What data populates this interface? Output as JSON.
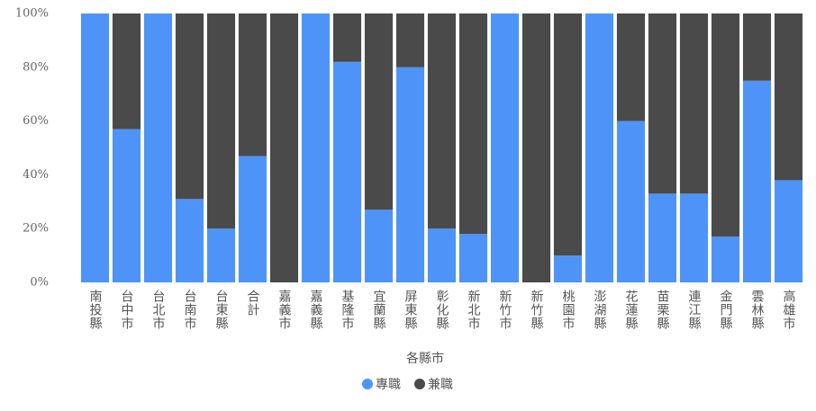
{
  "chart_data": {
    "type": "bar",
    "stacked": true,
    "x_label": "各縣市",
    "categories": [
      "南投縣",
      "台中市",
      "台北市",
      "台南市",
      "台東縣",
      "合計",
      "嘉義市",
      "嘉義縣",
      "基隆市",
      "宜蘭縣",
      "屏東縣",
      "彰化縣",
      "新北市",
      "新竹市",
      "新竹縣",
      "桃園市",
      "澎湖縣",
      "花蓮縣",
      "苗栗縣",
      "連江縣",
      "金門縣",
      "雲林縣",
      "高雄市"
    ],
    "series": [
      {
        "name": "專職",
        "color": "#4e94f8",
        "values": [
          100,
          57,
          100,
          31,
          20,
          47,
          0,
          100,
          82,
          27,
          80,
          20,
          18,
          100,
          0,
          10,
          100,
          60,
          33,
          33,
          17,
          75,
          38
        ]
      },
      {
        "name": "兼職",
        "color": "#4a4a4a",
        "values": [
          0,
          43,
          0,
          69,
          80,
          53,
          100,
          0,
          18,
          73,
          20,
          80,
          82,
          0,
          100,
          90,
          0,
          40,
          67,
          67,
          83,
          25,
          62
        ]
      }
    ],
    "ylim": [
      0,
      100
    ],
    "yticks": [
      {
        "value": 0,
        "label": "0%"
      },
      {
        "value": 20,
        "label": "20%"
      },
      {
        "value": 40,
        "label": "40%"
      },
      {
        "value": 60,
        "label": "60%"
      },
      {
        "value": 80,
        "label": "80%"
      },
      {
        "value": 100,
        "label": "100%"
      }
    ],
    "legend": "bottom"
  }
}
